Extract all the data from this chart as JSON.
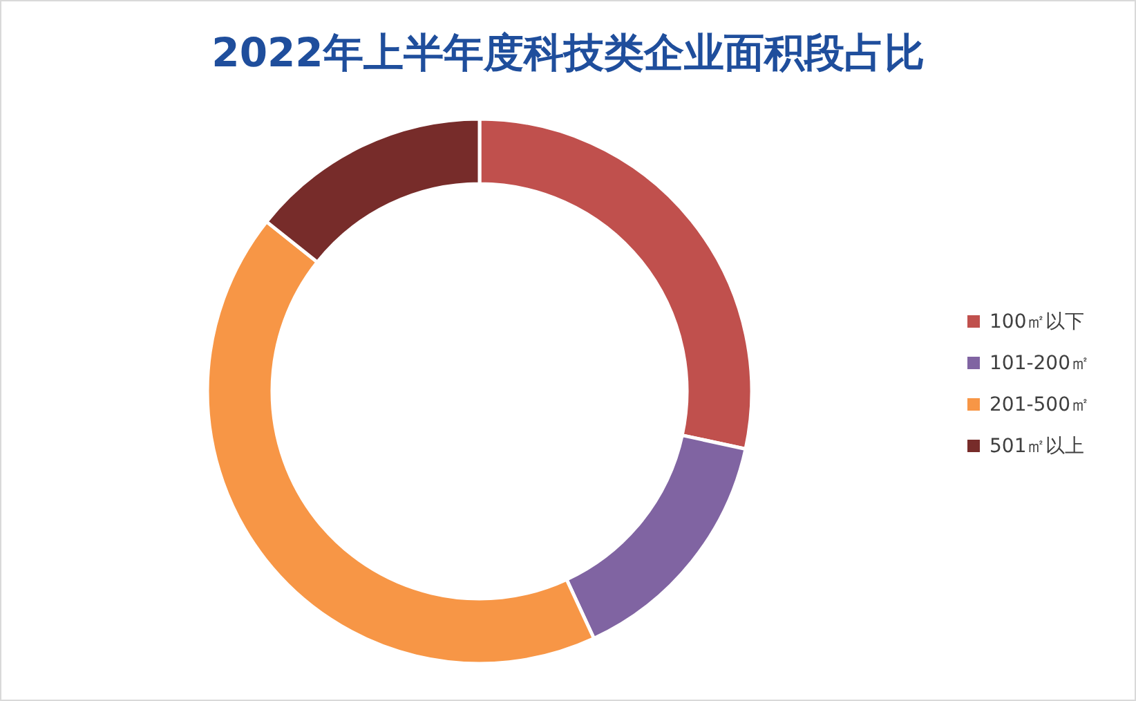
{
  "chart_data": {
    "type": "donut",
    "title": "2022年上半年度科技类企业面积段占比",
    "categories": [
      "100㎡以下",
      "101-200㎡",
      "201-500㎡",
      "501㎡以上"
    ],
    "values": [
      28.4,
      14.7,
      42.6,
      14.3
    ],
    "colors": [
      "#c0504d",
      "#8064a2",
      "#f79646",
      "#772c2a"
    ],
    "legend": "right"
  }
}
